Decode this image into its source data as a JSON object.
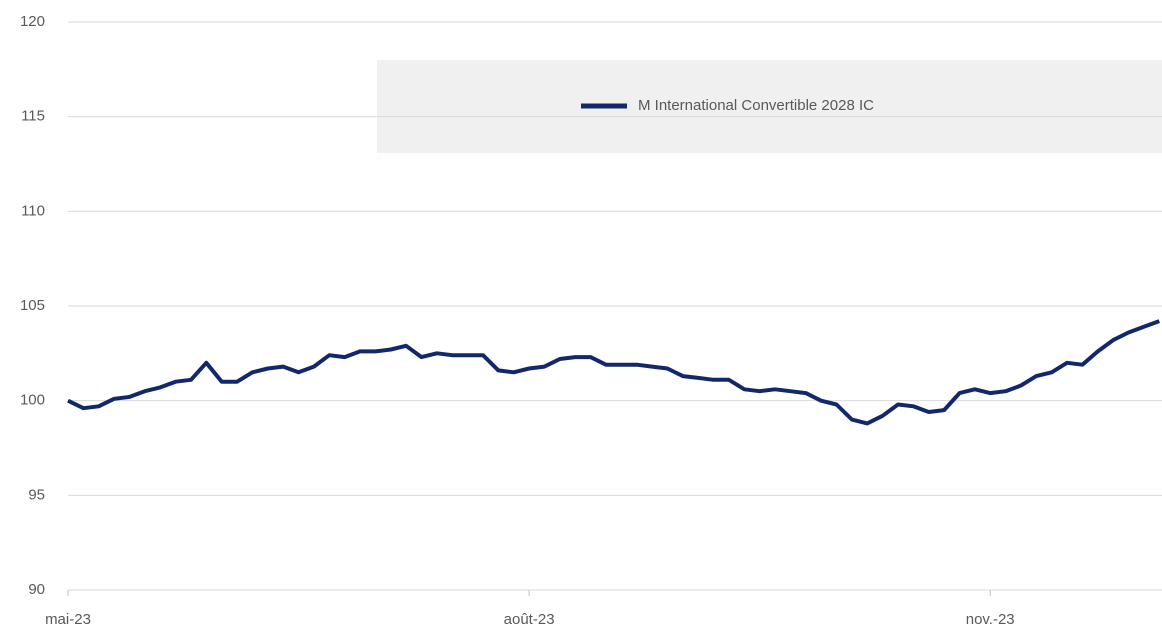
{
  "chart_data": {
    "type": "line",
    "categories": [
      "mai-23",
      null,
      null,
      null,
      null,
      null,
      null,
      null,
      null,
      null,
      null,
      null,
      null,
      null,
      null,
      null,
      null,
      null,
      null,
      null,
      null,
      null,
      null,
      null,
      null,
      null,
      null,
      null,
      null,
      null,
      "août-23",
      null,
      null,
      null,
      null,
      null,
      null,
      null,
      null,
      null,
      null,
      null,
      null,
      null,
      null,
      null,
      null,
      null,
      null,
      null,
      null,
      null,
      null,
      null,
      null,
      null,
      null,
      null,
      null,
      null,
      "nov.-23",
      null,
      null,
      null,
      null,
      null,
      null,
      null,
      null,
      null,
      null,
      null
    ],
    "series": [
      {
        "name": "M International Convertible 2028 IC",
        "color": "#13286b",
        "values": [
          100.0,
          99.6,
          99.7,
          100.1,
          100.2,
          100.5,
          100.7,
          101.0,
          101.1,
          102.0,
          101.0,
          101.0,
          101.5,
          101.7,
          101.8,
          101.5,
          101.8,
          102.4,
          102.3,
          102.6,
          102.6,
          102.7,
          102.9,
          102.3,
          102.5,
          102.4,
          102.4,
          102.4,
          101.6,
          101.5,
          101.7,
          101.8,
          102.2,
          102.3,
          102.3,
          101.9,
          101.9,
          101.9,
          101.8,
          101.7,
          101.3,
          101.2,
          101.1,
          101.1,
          100.6,
          100.5,
          100.6,
          100.5,
          100.4,
          100.0,
          99.8,
          99.0,
          98.8,
          99.2,
          99.8,
          99.7,
          99.4,
          99.5,
          100.4,
          100.6,
          100.4,
          100.5,
          100.8,
          101.3,
          101.5,
          102.0,
          101.9,
          102.6,
          103.2,
          103.6,
          103.9,
          104.2
        ]
      }
    ],
    "ylim": [
      90,
      120
    ],
    "yticks": [
      90,
      95,
      100,
      105,
      110,
      115,
      120
    ],
    "grid": true,
    "legend": "top"
  }
}
